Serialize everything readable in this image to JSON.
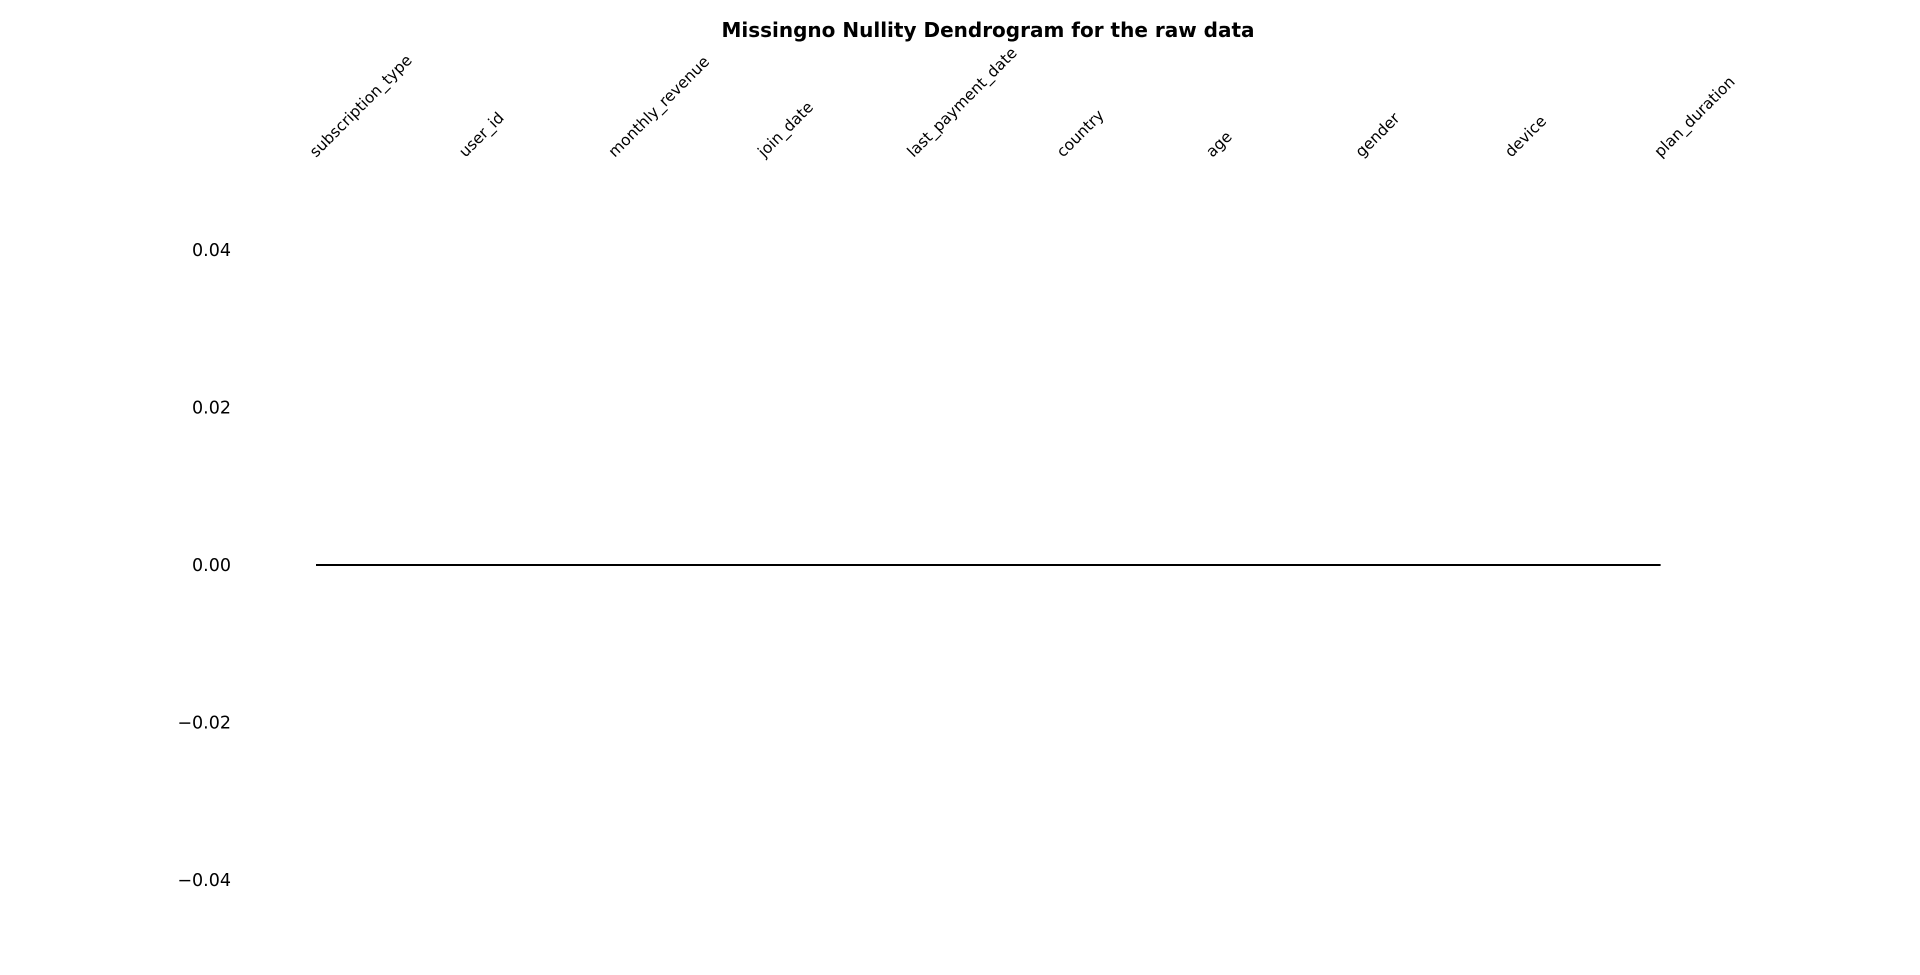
{
  "chart_data": {
    "type": "dendrogram",
    "title": "Missingno Nullity Dendrogram for the raw data",
    "xlabel": "",
    "ylabel": "",
    "labels": [
      "subscription_type",
      "user_id",
      "monthly_revenue",
      "join_date",
      "last_payment_date",
      "country",
      "age",
      "gender",
      "device",
      "plan_duration"
    ],
    "yticks": [
      0.04,
      0.02,
      0.0,
      -0.02,
      -0.04
    ],
    "ytick_labels": [
      "0.04",
      "0.02",
      "0.00",
      "−0.02",
      "−0.04"
    ],
    "ylim": [
      -0.05,
      0.05
    ],
    "merge_heights": [
      0,
      0,
      0,
      0,
      0,
      0,
      0,
      0,
      0
    ],
    "line_color": "#000000",
    "grid": false
  }
}
